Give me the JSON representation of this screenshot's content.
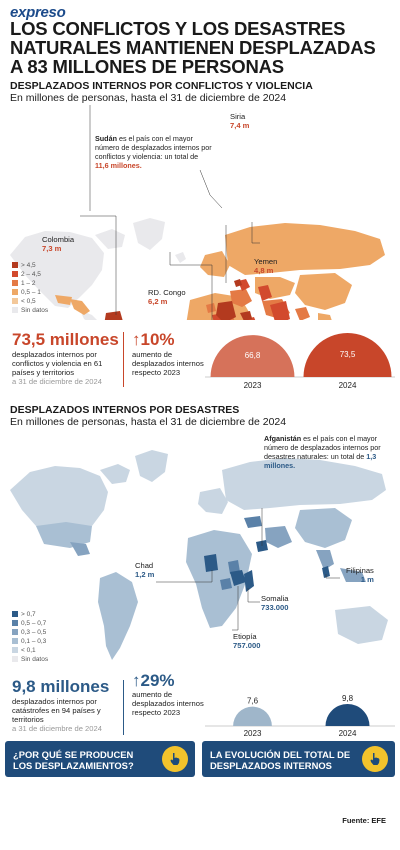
{
  "header": {
    "brand": "expreso",
    "title": "LOS CONFLICTOS Y LOS DESASTRES NATURALES MANTIENEN DESPLAZADAS A 83 MILLONES DE PERSONAS"
  },
  "colors": {
    "conflict_scale": [
      "#b33a1f",
      "#d24a2e",
      "#e47a45",
      "#eea866",
      "#f3c89a"
    ],
    "disaster_scale": [
      "#2c5a87",
      "#5a81a8",
      "#86a3c0",
      "#a9bfd3",
      "#c9d6e2"
    ],
    "no_data": "#e9e9ec",
    "button_bg": "#1f4b7a",
    "button_icon": "#f3c32c"
  },
  "conflicts": {
    "section_title": "DESPLAZADOS INTERNOS POR CONFLICTOS Y VIOLENCIA",
    "subtitle": "En millones de personas, hasta el 31 de diciembre de 2024",
    "annotation": {
      "bold": "Sudán",
      "text": " es el país con el mayor número de desplazados internos por conflictos y violencia: un total de ",
      "highlight": "11,6 millones."
    },
    "countries": [
      {
        "name": "Siria",
        "value": "7,4 m"
      },
      {
        "name": "Colombia",
        "value": "7,3 m"
      },
      {
        "name": "Yemen",
        "value": "4,8 m"
      },
      {
        "name": "RD. Congo",
        "value": "6,2 m"
      }
    ],
    "legend": [
      "> 4,5",
      "2 – 4,5",
      "1 – 2",
      "0,5 – 1",
      "< 0,5",
      "Sin datos"
    ],
    "stat": {
      "value": "73,5 millones",
      "description": "desplazados internos por conflictos y violencia en 61 países y territorios",
      "date": "a 31 de diciembre de 2024"
    },
    "change": {
      "value": "↑10%",
      "description": "aumento de desplazados internos respecto 2023"
    }
  },
  "disasters": {
    "section_title": "DESPLAZADOS INTERNOS POR DESASTRES",
    "subtitle": "En millones de personas, hasta el 31 de diciembre de 2024",
    "annotation": {
      "bold": "Afganistán",
      "text": " es el país con el mayor número de desplazados internos por desastres naturales: un total de ",
      "highlight": "1,3 millones."
    },
    "countries": [
      {
        "name": "Chad",
        "value": "1,2 m"
      },
      {
        "name": "Filipinas",
        "value": "1 m"
      },
      {
        "name": "Somalia",
        "value": "733.000"
      },
      {
        "name": "Etiopía",
        "value": "757.000"
      }
    ],
    "legend": [
      "> 0,7",
      "0,5 – 0,7",
      "0,3 – 0,5",
      "0,1 – 0,3",
      "< 0,1",
      "Sin datos"
    ],
    "stat": {
      "value": "9,8 millones",
      "description": "desplazados internos por catástrofes en 94 países y territorios",
      "date": "a 31 de diciembre de 2024"
    },
    "change": {
      "value": "↑29%",
      "description": "aumento de desplazados internos respecto 2023"
    }
  },
  "chart_data": [
    {
      "type": "bar",
      "categories": [
        "2023",
        "2024"
      ],
      "values": [
        66.8,
        73.5
      ],
      "value_labels": [
        "66,8",
        "73,5"
      ],
      "title": "",
      "xlabel": "",
      "ylabel": ""
    },
    {
      "type": "bar",
      "categories": [
        "2023",
        "2024"
      ],
      "values": [
        7.6,
        9.8
      ],
      "value_labels": [
        "7,6",
        "9,8"
      ],
      "title": "",
      "xlabel": "",
      "ylabel": ""
    }
  ],
  "buttons": {
    "why": "¿POR QUÉ SE PRODUCEN LOS DESPLAZAMIENTOS?",
    "evolution": "LA EVOLUCIÓN DEL TOTAL DE DESPLAZADOS INTERNOS",
    "icon": "hand-pointer-icon"
  },
  "footer": {
    "source": "Fuente: EFE"
  }
}
